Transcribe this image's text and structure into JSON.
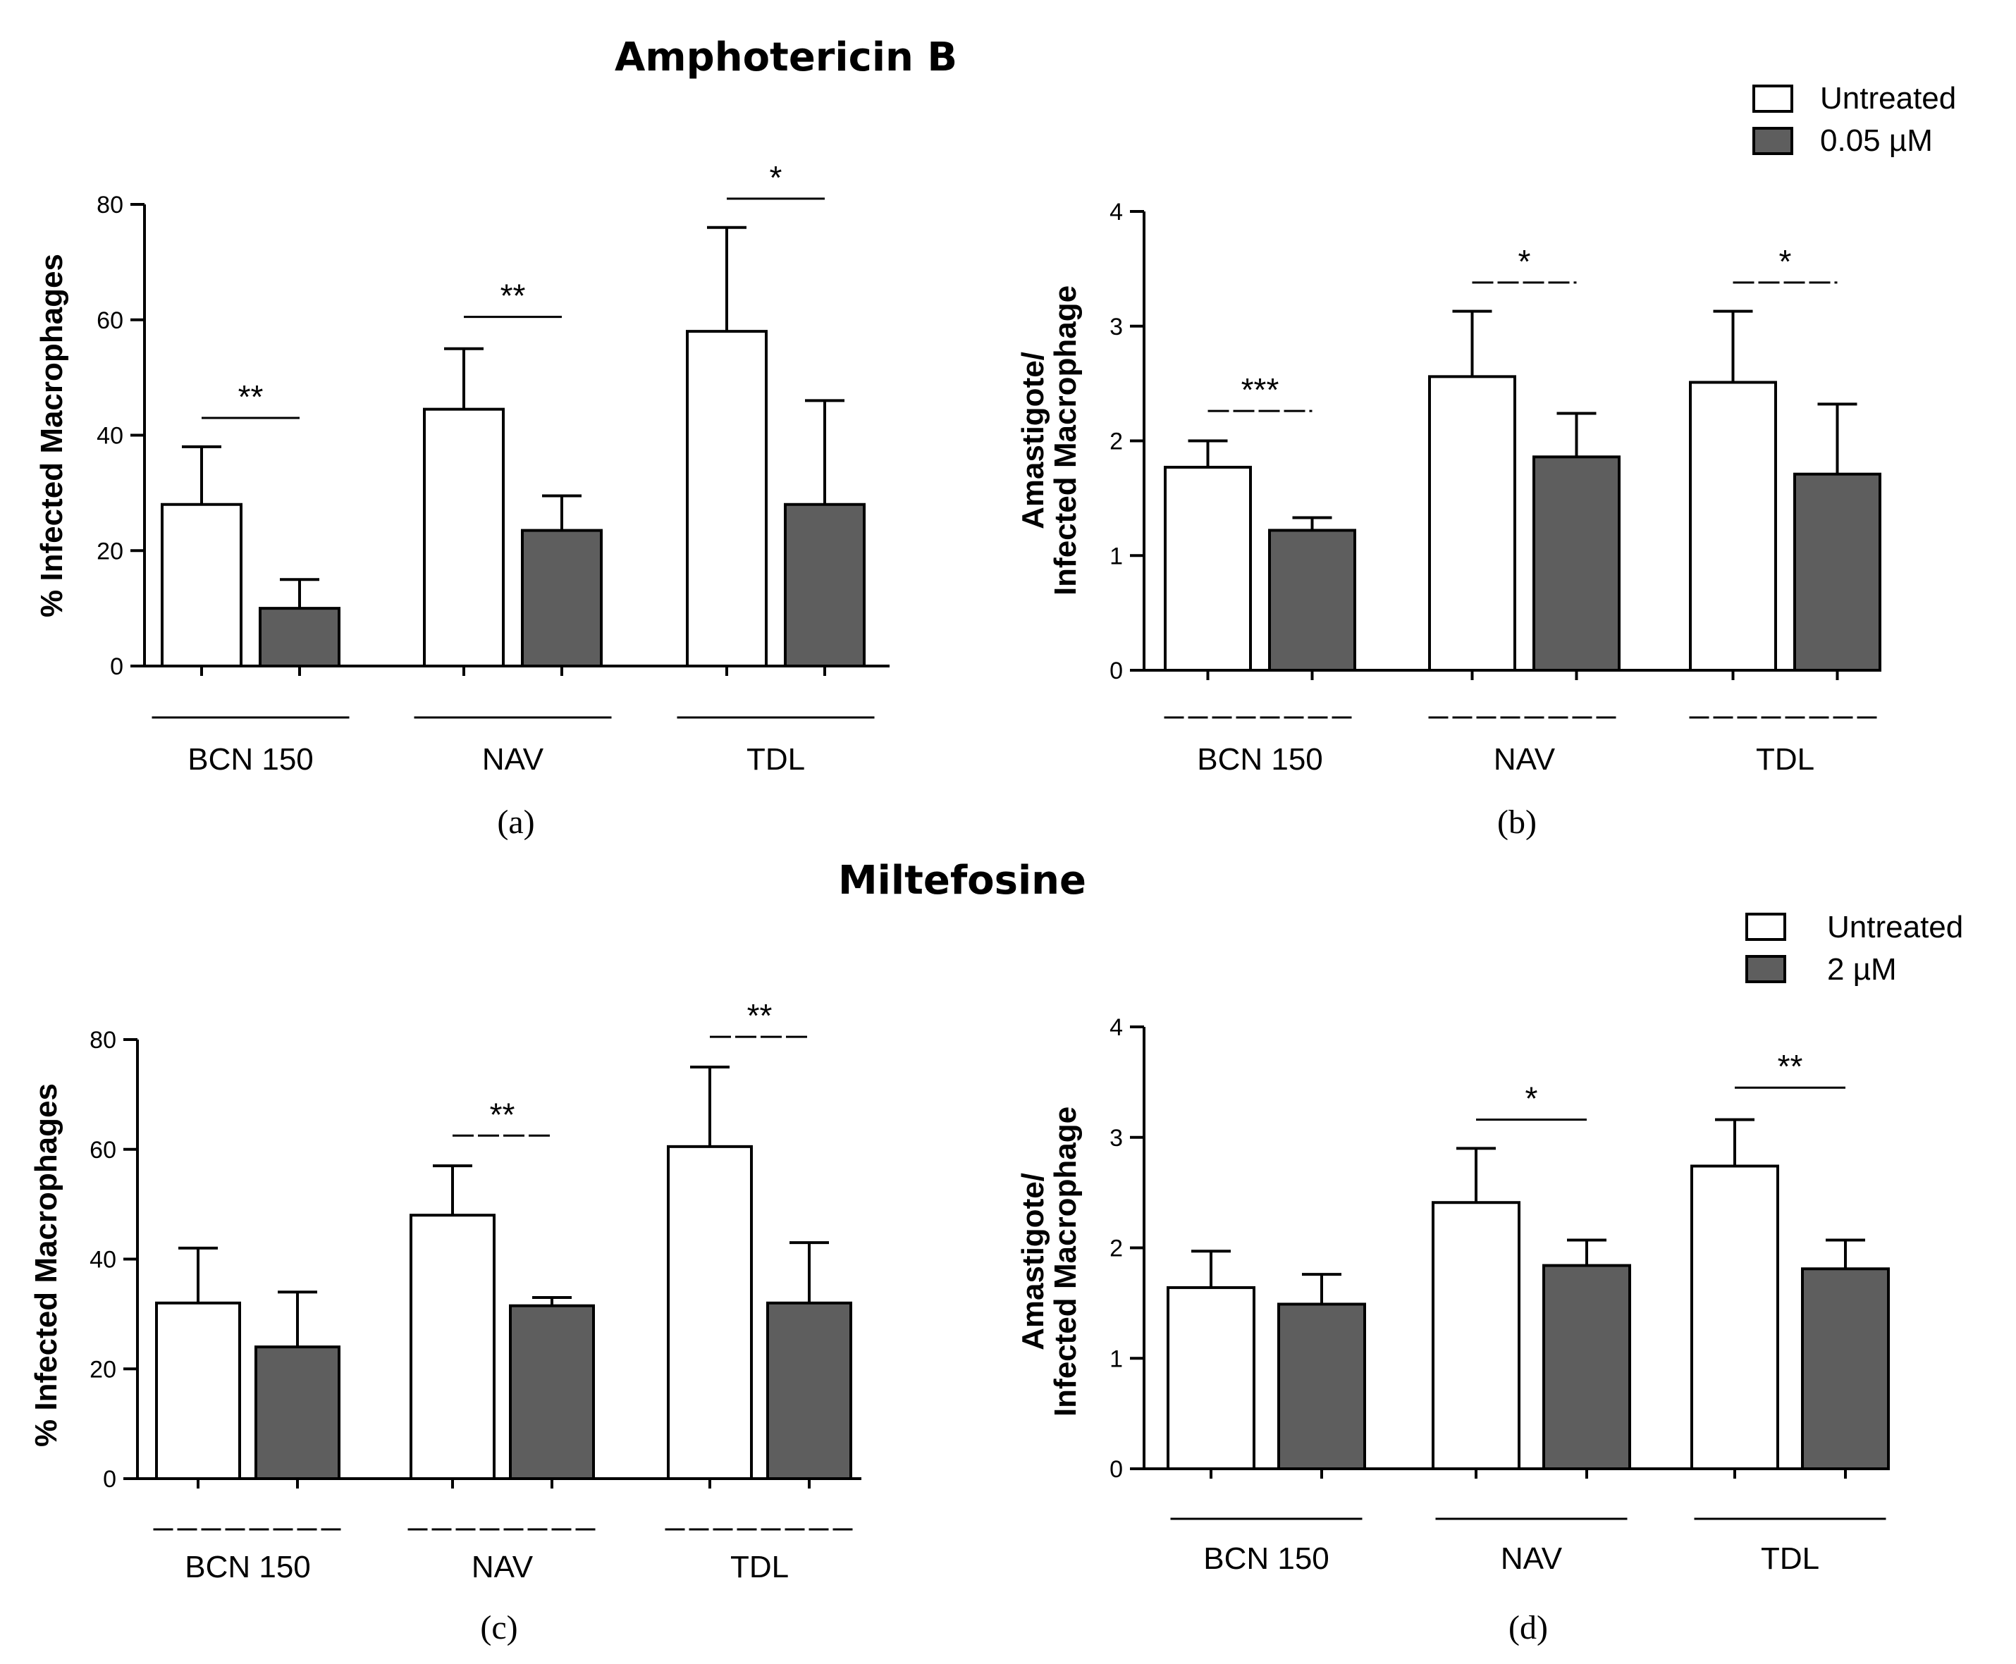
{
  "figure": {
    "title_top": "Amphotericin B",
    "title_bottom": "Miltefosine"
  },
  "colors": {
    "untreated_fill": "#ffffff",
    "treated_fill": "#5e5e5e",
    "stroke": "#000000"
  },
  "legend_top": {
    "untreated": "Untreated",
    "treated": "0.05 µM"
  },
  "legend_bottom": {
    "untreated": "Untreated",
    "treated": "2 µM"
  },
  "chart_data": [
    {
      "panel": "(a)",
      "type": "bar",
      "title": "Amphotericin B",
      "ylabel": "% Infected Macrophages",
      "xlabel": "",
      "ylim": [
        0,
        80
      ],
      "yticks": [
        0,
        20,
        40,
        60,
        80
      ],
      "categories": [
        "BCN 150",
        "NAV",
        "TDL"
      ],
      "series": [
        {
          "name": "Untreated",
          "values": [
            28,
            44.5,
            58
          ],
          "errors": [
            10,
            10.5,
            18
          ]
        },
        {
          "name": "0.05 µM",
          "values": [
            10,
            23.5,
            28
          ],
          "errors": [
            5,
            6,
            18
          ]
        }
      ],
      "significance": [
        "**",
        "**",
        "*"
      ],
      "sig_level": [
        43,
        60.5,
        81
      ],
      "grouping_dashed": false
    },
    {
      "panel": "(b)",
      "type": "bar",
      "title": "Amphotericin B",
      "ylabel": "Amastigote/ Infected Macrophage",
      "xlabel": "",
      "ylim": [
        0,
        4
      ],
      "yticks": [
        0,
        1,
        2,
        3,
        4
      ],
      "categories": [
        "BCN 150",
        "NAV",
        "TDL"
      ],
      "series": [
        {
          "name": "Untreated",
          "values": [
            1.77,
            2.56,
            2.51
          ],
          "errors": [
            0.23,
            0.57,
            0.62
          ]
        },
        {
          "name": "0.05 µM",
          "values": [
            1.22,
            1.86,
            1.71
          ],
          "errors": [
            0.11,
            0.38,
            0.61
          ]
        }
      ],
      "significance": [
        "***",
        "*",
        "*"
      ],
      "sig_level": [
        2.26,
        3.38,
        3.38
      ],
      "grouping_dashed": true
    },
    {
      "panel": "(c)",
      "type": "bar",
      "title": "Miltefosine",
      "ylabel": "% Infected Macrophages",
      "xlabel": "",
      "ylim": [
        0,
        80
      ],
      "yticks": [
        0,
        20,
        40,
        60,
        80
      ],
      "categories": [
        "BCN 150",
        "NAV",
        "TDL"
      ],
      "series": [
        {
          "name": "Untreated",
          "values": [
            32,
            48,
            60.5
          ],
          "errors": [
            10,
            9,
            14.5
          ]
        },
        {
          "name": "2 µM",
          "values": [
            24,
            31.5,
            32
          ],
          "errors": [
            10,
            1.5,
            11
          ]
        }
      ],
      "significance": [
        "",
        "**",
        "**"
      ],
      "sig_level": [
        0,
        62.5,
        80.5
      ],
      "grouping_dashed": true
    },
    {
      "panel": "(d)",
      "type": "bar",
      "title": "Miltefosine",
      "ylabel": "Amastigote/ Infected Macrophage",
      "xlabel": "",
      "ylim": [
        0,
        4
      ],
      "yticks": [
        0,
        1,
        2,
        3,
        4
      ],
      "categories": [
        "BCN 150",
        "NAV",
        "TDL"
      ],
      "series": [
        {
          "name": "Untreated",
          "values": [
            1.64,
            2.41,
            2.74
          ],
          "errors": [
            0.33,
            0.49,
            0.42
          ]
        },
        {
          "name": "2 µM",
          "values": [
            1.49,
            1.84,
            1.81
          ],
          "errors": [
            0.27,
            0.23,
            0.26
          ]
        }
      ],
      "significance": [
        "",
        "*",
        "**"
      ],
      "sig_level": [
        0,
        3.16,
        3.45
      ],
      "grouping_dashed": false
    }
  ]
}
